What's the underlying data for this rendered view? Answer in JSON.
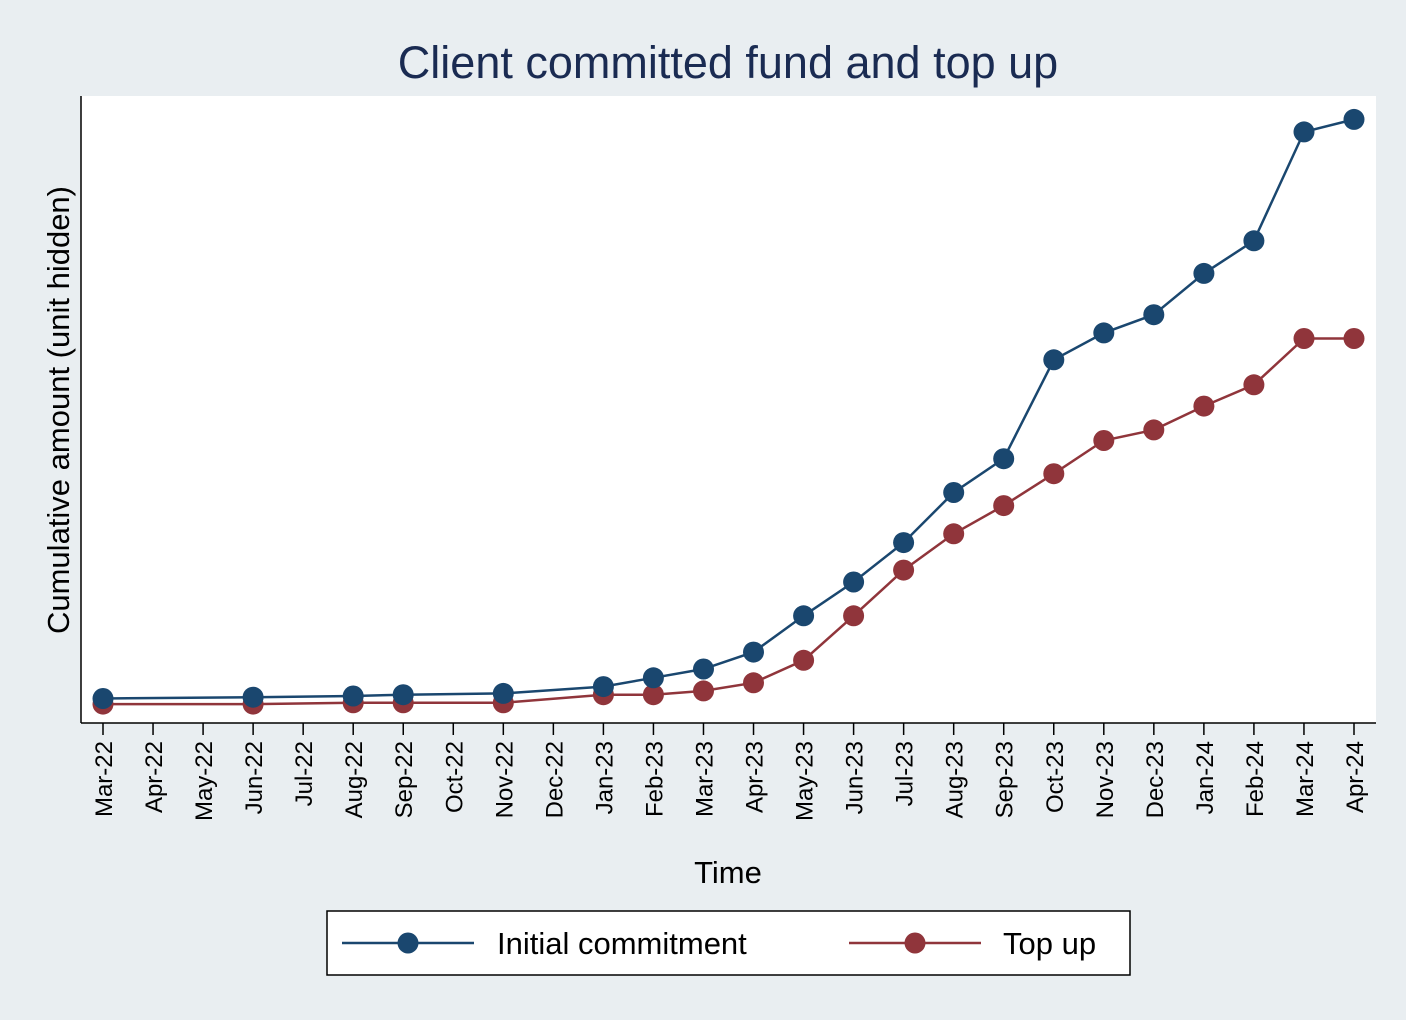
{
  "colors": {
    "background": "#e9eef1",
    "plot_area": "#ffffff",
    "title": "#1a2b52",
    "axis": "#000000",
    "initial_commitment": "#1a476f",
    "top_up": "#90353b"
  },
  "chart_data": {
    "type": "line",
    "title": "Client committed fund and top up",
    "xlabel": "Time",
    "ylabel": "Cumulative amount (unit hidden)",
    "x_ticks": [
      "Mar-22",
      "Apr-22",
      "May-22",
      "Jun-22",
      "Jul-22",
      "Aug-22",
      "Sep-22",
      "Oct-22",
      "Nov-22",
      "Dec-22",
      "Jan-23",
      "Feb-23",
      "Mar-23",
      "Apr-23",
      "May-23",
      "Jun-23",
      "Jul-23",
      "Aug-23",
      "Sep-23",
      "Oct-23",
      "Nov-23",
      "Dec-23",
      "Jan-24",
      "Feb-24",
      "Mar-24",
      "Apr-24"
    ],
    "y_axis_labels_shown": false,
    "ylim": [
      0,
      100
    ],
    "grid": false,
    "legend_position": "bottom",
    "series": [
      {
        "name": "Initial commitment",
        "x": [
          "Mar-22",
          "Jun-22",
          "Aug-22",
          "Sep-22",
          "Nov-22",
          "Jan-23",
          "Feb-23",
          "Mar-23",
          "Apr-23",
          "May-23",
          "Jun-23",
          "Jul-23",
          "Aug-23",
          "Sep-23",
          "Oct-23",
          "Nov-23",
          "Dec-23",
          "Jan-24",
          "Feb-24",
          "Mar-24",
          "Apr-24"
        ],
        "values": [
          4.4,
          4.6,
          4.8,
          5.0,
          5.2,
          6.3,
          7.7,
          9.1,
          11.8,
          17.6,
          23.0,
          29.3,
          37.3,
          42.7,
          58.5,
          62.8,
          65.7,
          72.3,
          77.5,
          94.9,
          96.9
        ]
      },
      {
        "name": "Top up",
        "x": [
          "Mar-22",
          "Jun-22",
          "Aug-22",
          "Sep-22",
          "Nov-22",
          "Jan-23",
          "Feb-23",
          "Mar-23",
          "Apr-23",
          "May-23",
          "Jun-23",
          "Jul-23",
          "Aug-23",
          "Sep-23",
          "Oct-23",
          "Nov-23",
          "Dec-23",
          "Jan-24",
          "Feb-24",
          "Mar-24",
          "Apr-24"
        ],
        "values": [
          3.5,
          3.5,
          3.7,
          3.7,
          3.7,
          5.0,
          5.0,
          5.6,
          6.9,
          10.5,
          17.6,
          24.9,
          30.7,
          35.2,
          40.3,
          45.6,
          47.3,
          51.1,
          54.5,
          61.9,
          61.9
        ]
      }
    ]
  }
}
